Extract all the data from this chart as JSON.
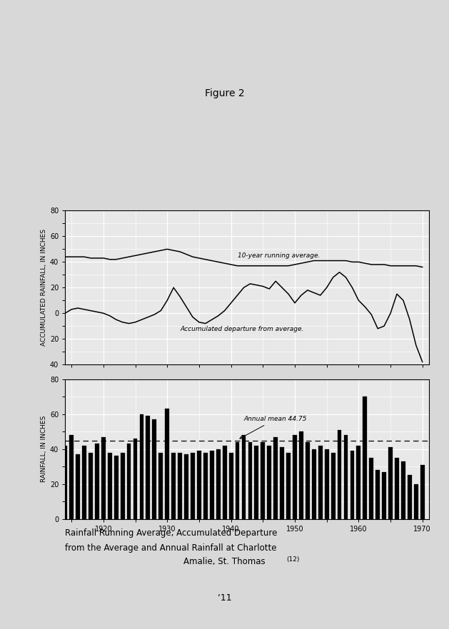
{
  "figure_title": "Figure 2",
  "caption_line1": "Rainfall Running Average, Accumulated Departure",
  "caption_line2": "from the Average and Annual Rainfall at Charlotte",
  "caption_line3": "Amalie, St. Thomas",
  "caption_superscript": "(12)",
  "page_number": "‘11",
  "top_panel": {
    "ylabel": "ACCUMULATED RAINFALL, IN INCHES",
    "ylim": [
      -40,
      80
    ],
    "ytick_vals": [
      -40,
      -20,
      0,
      20,
      40,
      60,
      80
    ],
    "ytick_labels": [
      "40",
      "20",
      "0",
      "20",
      "40",
      "60",
      "80"
    ],
    "xlim": [
      1914,
      1971
    ],
    "label_running_avg": "10-year running average.",
    "label_accum_dep": "Accumulated departure from average.",
    "running_avg_x": [
      1914,
      1915,
      1916,
      1917,
      1918,
      1919,
      1920,
      1921,
      1922,
      1923,
      1924,
      1925,
      1926,
      1927,
      1928,
      1929,
      1930,
      1931,
      1932,
      1933,
      1934,
      1935,
      1936,
      1937,
      1938,
      1939,
      1940,
      1941,
      1942,
      1943,
      1944,
      1945,
      1946,
      1947,
      1948,
      1949,
      1950,
      1951,
      1952,
      1953,
      1954,
      1955,
      1956,
      1957,
      1958,
      1959,
      1960,
      1961,
      1962,
      1963,
      1964,
      1965,
      1966,
      1967,
      1968,
      1969,
      1970
    ],
    "running_avg_y": [
      44,
      44,
      44,
      44,
      43,
      43,
      43,
      42,
      42,
      43,
      44,
      45,
      46,
      47,
      48,
      49,
      50,
      49,
      48,
      46,
      44,
      43,
      42,
      41,
      40,
      39,
      38,
      37,
      37,
      37,
      37,
      37,
      37,
      37,
      37,
      37,
      38,
      39,
      40,
      41,
      41,
      41,
      41,
      41,
      41,
      40,
      40,
      39,
      38,
      38,
      38,
      37,
      37,
      37,
      37,
      37,
      36
    ],
    "accum_dep_x": [
      1914,
      1915,
      1916,
      1917,
      1918,
      1919,
      1920,
      1921,
      1922,
      1923,
      1924,
      1925,
      1926,
      1927,
      1928,
      1929,
      1930,
      1931,
      1932,
      1933,
      1934,
      1935,
      1936,
      1937,
      1938,
      1939,
      1940,
      1941,
      1942,
      1943,
      1944,
      1945,
      1946,
      1947,
      1948,
      1949,
      1950,
      1951,
      1952,
      1953,
      1954,
      1955,
      1956,
      1957,
      1958,
      1959,
      1960,
      1961,
      1962,
      1963,
      1964,
      1965,
      1966,
      1967,
      1968,
      1969,
      1970
    ],
    "accum_dep_y": [
      0,
      3,
      4,
      3,
      2,
      1,
      0,
      -2,
      -5,
      -7,
      -8,
      -7,
      -5,
      -3,
      -1,
      2,
      10,
      20,
      13,
      5,
      -3,
      -7,
      -8,
      -5,
      -2,
      2,
      8,
      14,
      20,
      23,
      22,
      21,
      19,
      25,
      20,
      15,
      8,
      14,
      18,
      16,
      14,
      20,
      28,
      32,
      28,
      20,
      10,
      5,
      -1,
      -12,
      -10,
      0,
      15,
      10,
      -5,
      -25,
      -38
    ]
  },
  "bottom_panel": {
    "ylabel": "RAINFALL, IN INCHES",
    "ylim": [
      0,
      80
    ],
    "ytick_vals": [
      0,
      20,
      40,
      60,
      80
    ],
    "ytick_labels": [
      "0",
      "20",
      "40",
      "60",
      "80"
    ],
    "xlim": [
      1914,
      1971
    ],
    "mean_value": 44.75,
    "mean_label": "Annual mean 44.75",
    "bar_years": [
      1914,
      1915,
      1916,
      1917,
      1918,
      1919,
      1920,
      1921,
      1922,
      1923,
      1924,
      1925,
      1926,
      1927,
      1928,
      1929,
      1930,
      1931,
      1932,
      1933,
      1934,
      1935,
      1936,
      1937,
      1938,
      1939,
      1940,
      1941,
      1942,
      1943,
      1944,
      1945,
      1946,
      1947,
      1948,
      1949,
      1950,
      1951,
      1952,
      1953,
      1954,
      1955,
      1956,
      1957,
      1958,
      1959,
      1960,
      1961,
      1962,
      1963,
      1964,
      1965,
      1966,
      1967,
      1968,
      1969,
      1970
    ],
    "bar_values": [
      42,
      48,
      37,
      42,
      38,
      43,
      47,
      38,
      36,
      38,
      43,
      46,
      60,
      59,
      57,
      38,
      63,
      38,
      38,
      37,
      38,
      39,
      38,
      39,
      40,
      42,
      38,
      44,
      48,
      44,
      42,
      44,
      42,
      47,
      41,
      38,
      48,
      50,
      44,
      40,
      42,
      40,
      38,
      51,
      48,
      39,
      42,
      70,
      35,
      28,
      27,
      41,
      35,
      33,
      25,
      20,
      31
    ]
  },
  "xticks": [
    1920,
    1930,
    1940,
    1950,
    1960,
    1970
  ],
  "page_bg": "#d8d8d8",
  "panel_bg": "#e8e8e8",
  "grid_color": "#ffffff"
}
